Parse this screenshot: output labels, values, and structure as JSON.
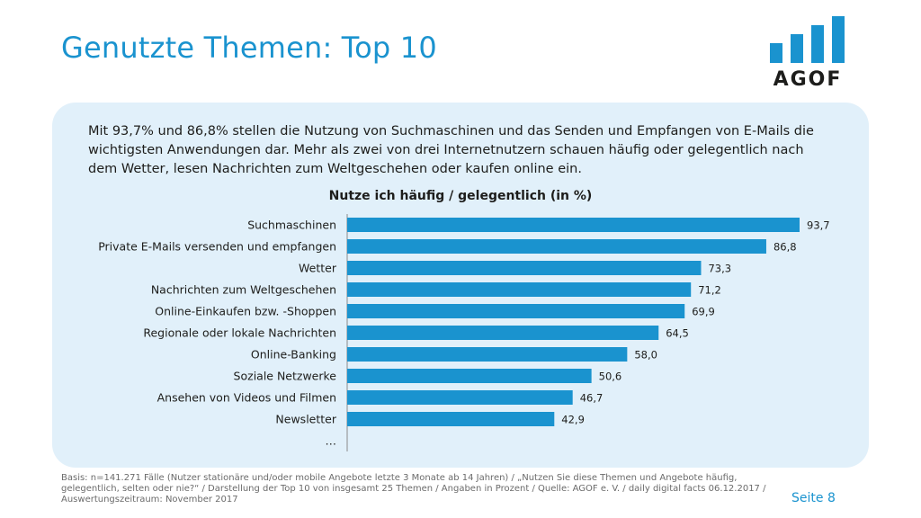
{
  "header": {
    "title": "Genutzte Themen: Top 10",
    "logo_text": "AGOF"
  },
  "intro_text": "Mit 93,7% und 86,8% stellen die Nutzung von Suchmaschinen und das Senden und Empfangen von E-Mails die wichtigsten Anwendungen dar. Mehr als zwei von drei Internetnutzern schauen häufig oder gelegentlich nach dem Wetter, lesen Nachrichten zum Weltgeschehen oder kaufen online ein.",
  "colors": {
    "accent": "#1a93cf",
    "bar": "#1a93cf",
    "panel": "#e1f0fa",
    "text": "#1d1d1b"
  },
  "chart_data": {
    "type": "bar",
    "orientation": "horizontal",
    "title": "Nutze ich häufig / gelegentlich (in %)",
    "categories": [
      "Suchmaschinen",
      "Private E-Mails versenden und empfangen",
      "Wetter",
      "Nachrichten zum Weltgeschehen",
      "Online-Einkaufen bzw. -Shoppen",
      "Regionale oder lokale Nachrichten",
      "Online-Banking",
      "Soziale Netzwerke",
      "Ansehen von Videos und Filmen",
      "Newsletter"
    ],
    "values": [
      93.7,
      86.8,
      73.3,
      71.2,
      69.9,
      64.5,
      58.0,
      50.6,
      46.7,
      42.9
    ],
    "value_labels": [
      "93,7",
      "86,8",
      "73,3",
      "71,2",
      "69,9",
      "64,5",
      "58,0",
      "50,6",
      "46,7",
      "42,9"
    ],
    "trailing_category": "…",
    "xlim": [
      0,
      100
    ],
    "grid": false,
    "legend": "none"
  },
  "footer": {
    "note": "Basis: n=141.271 Fälle (Nutzer stationäre und/oder mobile Angebote letzte 3 Monate ab 14 Jahren) / „Nutzen Sie diese Themen und Angebote häufig, gelegentlich, selten oder nie?“ / Darstellung der Top 10 von insgesamt 25 Themen / Angaben in Prozent / Quelle: AGOF e. V. / daily digital facts 06.12.2017 / Auswertungszeitraum: November 2017",
    "page": "Seite 8"
  }
}
